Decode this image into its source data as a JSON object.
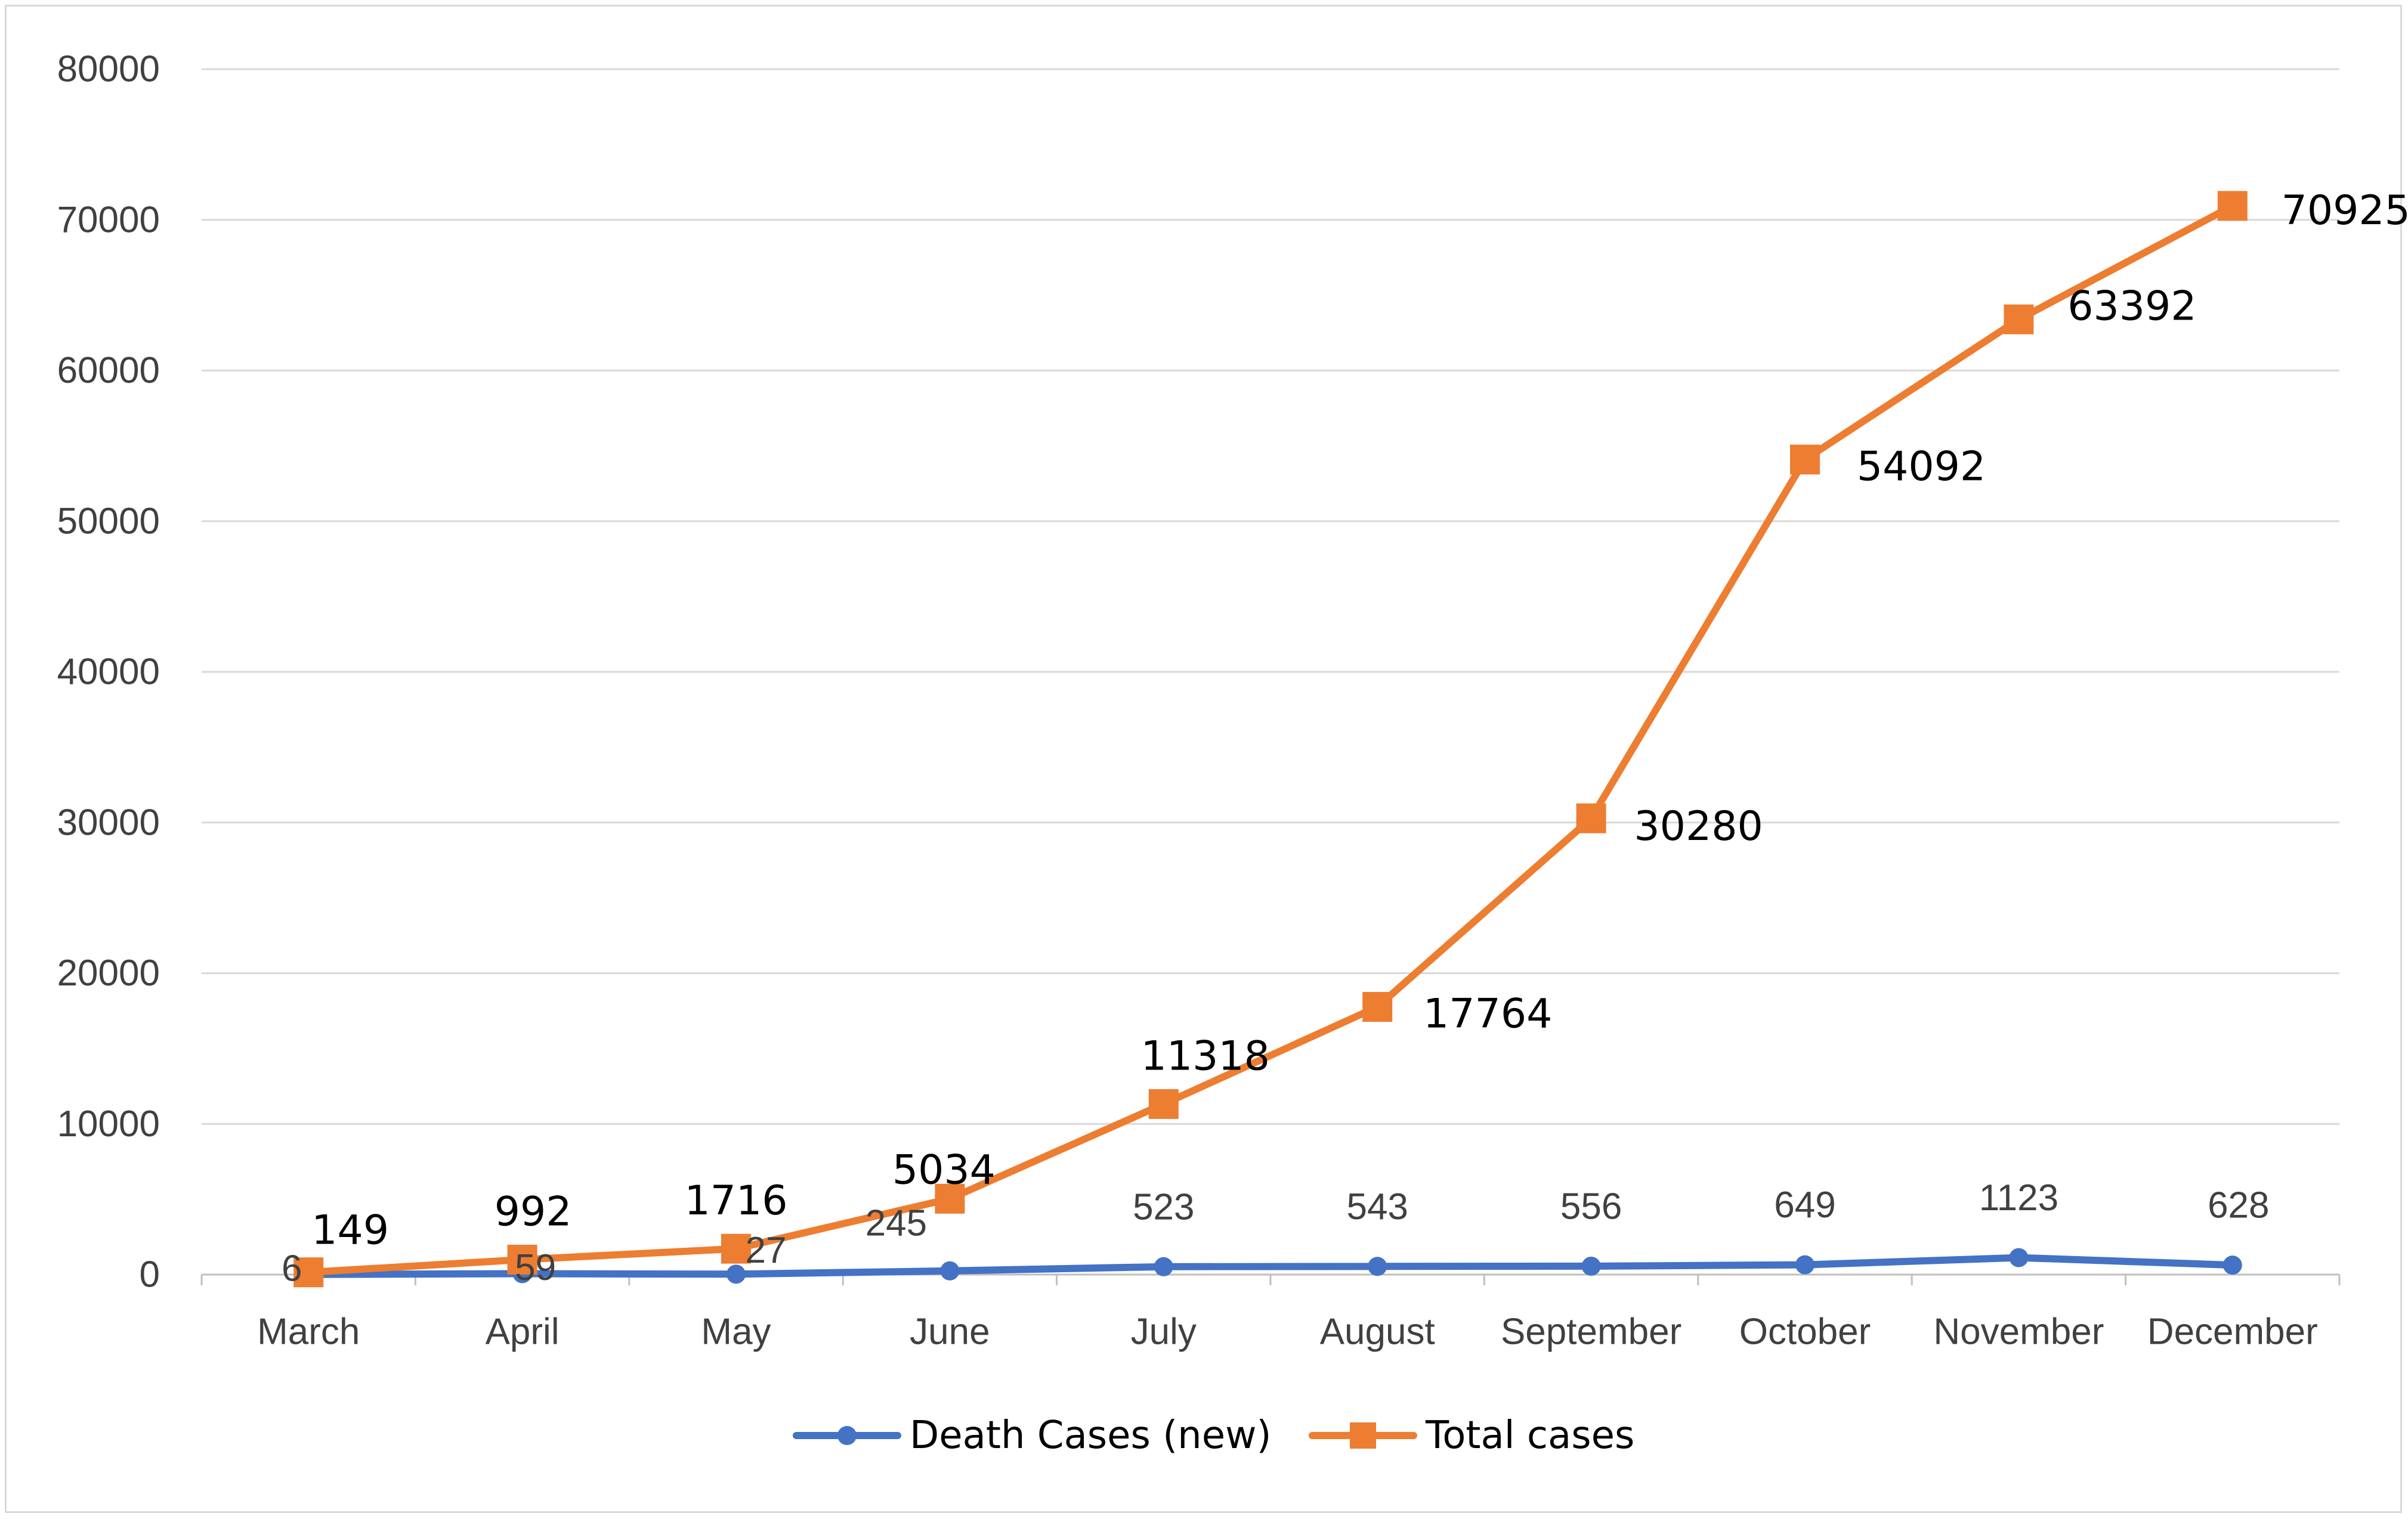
{
  "chart_data": {
    "type": "line",
    "title": "",
    "xlabel": "",
    "ylabel": "",
    "ylim": [
      0,
      80000
    ],
    "yticks": [
      0,
      10000,
      20000,
      30000,
      40000,
      50000,
      60000,
      70000,
      80000
    ],
    "grid": true,
    "legend_position": "bottom",
    "categories": [
      "March",
      "April",
      "May",
      "June",
      "July",
      "August",
      "September",
      "October",
      "November",
      "December"
    ],
    "series": [
      {
        "name": "Death Cases (new)",
        "color": "#4472c4",
        "marker": "circle",
        "values": [
          6,
          59,
          27,
          245,
          523,
          543,
          556,
          649,
          1123,
          628
        ],
        "labels": [
          "6",
          "59",
          "27",
          "245",
          "523",
          "543",
          "556",
          "649",
          "1123",
          "628"
        ]
      },
      {
        "name": "Total cases",
        "color": "#ed7d31",
        "marker": "square",
        "values": [
          149,
          992,
          1716,
          5034,
          11318,
          17764,
          30280,
          54092,
          63392,
          70925
        ],
        "labels": [
          "149",
          "992",
          "1716",
          "5034",
          "11318",
          "17764",
          "30280",
          "54092",
          "63392",
          "70925"
        ]
      }
    ]
  }
}
